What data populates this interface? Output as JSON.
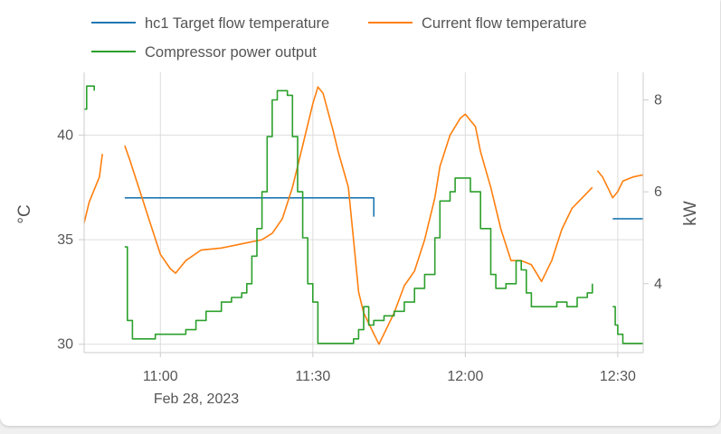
{
  "chart_data": {
    "type": "line",
    "title": "",
    "ylabel": "°C",
    "ylabel_right": "kW",
    "date_label": "Feb 28, 2023",
    "x_ticks": [
      "11:00",
      "11:30",
      "12:00",
      "12:30"
    ],
    "y_ticks_left": [
      "30",
      "35",
      "40"
    ],
    "y_ticks_right": [
      "4",
      "6",
      "8"
    ],
    "x_range": [
      "10:45",
      "12:35"
    ],
    "ylim_left": [
      29.6,
      43.0
    ],
    "ylim_right": [
      2.5,
      8.6
    ],
    "grid": true,
    "legend_position": "top",
    "series": [
      {
        "name": "hc1 Target flow temperature",
        "axis": "left",
        "color": "#1f77b4",
        "step": true,
        "segments": [
          [
            [
              "10:53",
              37.0
            ],
            [
              "11:42",
              37.0
            ],
            [
              "11:42",
              36.1
            ]
          ],
          [
            [
              "12:29",
              36.0
            ],
            [
              "12:35",
              36.0
            ]
          ]
        ]
      },
      {
        "name": "Current flow temperature",
        "axis": "left",
        "color": "#ff7f0e",
        "step": false,
        "segments": [
          [
            [
              "10:45",
              35.8
            ],
            [
              "10:46",
              36.8
            ],
            [
              "10:48",
              38.0
            ],
            [
              "10:48.6",
              39.1
            ]
          ],
          [
            [
              "10:53",
              39.5
            ],
            [
              "10:54",
              38.8
            ],
            [
              "10:56",
              37.3
            ],
            [
              "10:58",
              35.8
            ],
            [
              "11:00",
              34.3
            ],
            [
              "11:02",
              33.6
            ],
            [
              "11:03",
              33.4
            ],
            [
              "11:05",
              34.0
            ],
            [
              "11:08",
              34.5
            ],
            [
              "11:12",
              34.6
            ],
            [
              "11:16",
              34.8
            ],
            [
              "11:20",
              35.0
            ],
            [
              "11:22",
              35.3
            ],
            [
              "11:24",
              36.0
            ],
            [
              "11:26",
              37.5
            ],
            [
              "11:28",
              39.5
            ],
            [
              "11:30",
              41.5
            ],
            [
              "11:31",
              42.3
            ],
            [
              "11:32",
              42.0
            ],
            [
              "11:34",
              40.2
            ],
            [
              "11:35",
              39.2
            ],
            [
              "11:37",
              37.5
            ],
            [
              "11:38",
              35.0
            ],
            [
              "11:39",
              32.5
            ],
            [
              "11:40",
              31.5
            ],
            [
              "11:42",
              30.5
            ],
            [
              "11:43",
              30.0
            ],
            [
              "11:44",
              30.5
            ],
            [
              "11:46",
              31.5
            ],
            [
              "11:48",
              32.8
            ],
            [
              "11:50",
              33.5
            ],
            [
              "11:52",
              35.0
            ],
            [
              "11:54",
              37.0
            ],
            [
              "11:55",
              38.5
            ],
            [
              "11:57",
              40.0
            ],
            [
              "11:59",
              40.8
            ],
            [
              "12:00",
              41.0
            ],
            [
              "12:02",
              40.4
            ],
            [
              "12:03",
              39.2
            ],
            [
              "12:05",
              37.5
            ],
            [
              "12:07",
              35.5
            ],
            [
              "12:09",
              34.0
            ],
            [
              "12:11",
              34.0
            ],
            [
              "12:13",
              33.8
            ],
            [
              "12:15",
              33.0
            ],
            [
              "12:17",
              34.0
            ],
            [
              "12:19",
              35.5
            ],
            [
              "12:21",
              36.5
            ],
            [
              "12:23",
              37.0
            ],
            [
              "12:25",
              37.5
            ]
          ],
          [
            [
              "12:26",
              38.3
            ],
            [
              "12:27",
              38.0
            ],
            [
              "12:28",
              37.5
            ],
            [
              "12:29",
              37.0
            ],
            [
              "12:30",
              37.3
            ],
            [
              "12:31",
              37.8
            ],
            [
              "12:33",
              38.0
            ],
            [
              "12:35",
              38.1
            ]
          ]
        ]
      },
      {
        "name": "Compressor power output",
        "axis": "right",
        "color": "#2ca02c",
        "step": true,
        "segments": [
          [
            [
              "10:45",
              7.8
            ],
            [
              "10:45.5",
              8.3
            ],
            [
              "10:47",
              8.3
            ],
            [
              "10:47",
              8.2
            ]
          ],
          [
            [
              "10:53",
              4.8
            ],
            [
              "10:53.5",
              3.2
            ],
            [
              "10:54.5",
              2.8
            ],
            [
              "10:57",
              2.8
            ],
            [
              "10:59",
              2.9
            ],
            [
              "11:05",
              3.0
            ],
            [
              "11:07",
              3.2
            ],
            [
              "11:09",
              3.4
            ],
            [
              "11:12",
              3.6
            ],
            [
              "11:14",
              3.7
            ],
            [
              "11:16",
              3.8
            ],
            [
              "11:17",
              4.0
            ],
            [
              "11:18",
              4.6
            ],
            [
              "11:19",
              5.2
            ],
            [
              "11:20",
              6.0
            ],
            [
              "11:21",
              7.2
            ],
            [
              "11:22",
              8.0
            ],
            [
              "11:23",
              8.2
            ],
            [
              "11:25",
              8.1
            ],
            [
              "11:26",
              7.2
            ],
            [
              "11:27",
              6.0
            ],
            [
              "11:28",
              5.0
            ],
            [
              "11:29",
              4.0
            ],
            [
              "11:30",
              3.6
            ],
            [
              "11:31",
              2.7
            ],
            [
              "11:33",
              2.7
            ],
            [
              "11:35",
              2.7
            ],
            [
              "11:37",
              2.7
            ],
            [
              "11:38",
              2.8
            ],
            [
              "11:39",
              3.0
            ],
            [
              "11:40",
              3.5
            ],
            [
              "11:41",
              3.1
            ],
            [
              "11:42",
              3.2
            ],
            [
              "11:44",
              3.3
            ],
            [
              "11:46",
              3.4
            ],
            [
              "11:48",
              3.6
            ],
            [
              "11:50",
              3.9
            ],
            [
              "11:52",
              4.2
            ],
            [
              "11:54",
              5.0
            ],
            [
              "11:55",
              5.8
            ],
            [
              "11:57",
              6.0
            ],
            [
              "11:58",
              6.3
            ],
            [
              "11:59",
              6.3
            ],
            [
              "12:01",
              6.0
            ],
            [
              "12:03",
              5.2
            ],
            [
              "12:05",
              4.2
            ],
            [
              "12:06",
              3.9
            ],
            [
              "12:08",
              4.0
            ],
            [
              "12:10",
              4.5
            ],
            [
              "12:11",
              4.3
            ],
            [
              "12:12",
              3.8
            ],
            [
              "12:13",
              3.5
            ],
            [
              "12:15",
              3.5
            ],
            [
              "12:18",
              3.6
            ],
            [
              "12:20",
              3.5
            ],
            [
              "12:22",
              3.7
            ],
            [
              "12:24",
              3.8
            ],
            [
              "12:25",
              4.0
            ]
          ],
          [
            [
              "12:29",
              3.5
            ],
            [
              "12:29.5",
              3.1
            ],
            [
              "12:30",
              2.9
            ],
            [
              "12:31",
              2.7
            ],
            [
              "12:35",
              2.7
            ]
          ]
        ]
      }
    ]
  }
}
